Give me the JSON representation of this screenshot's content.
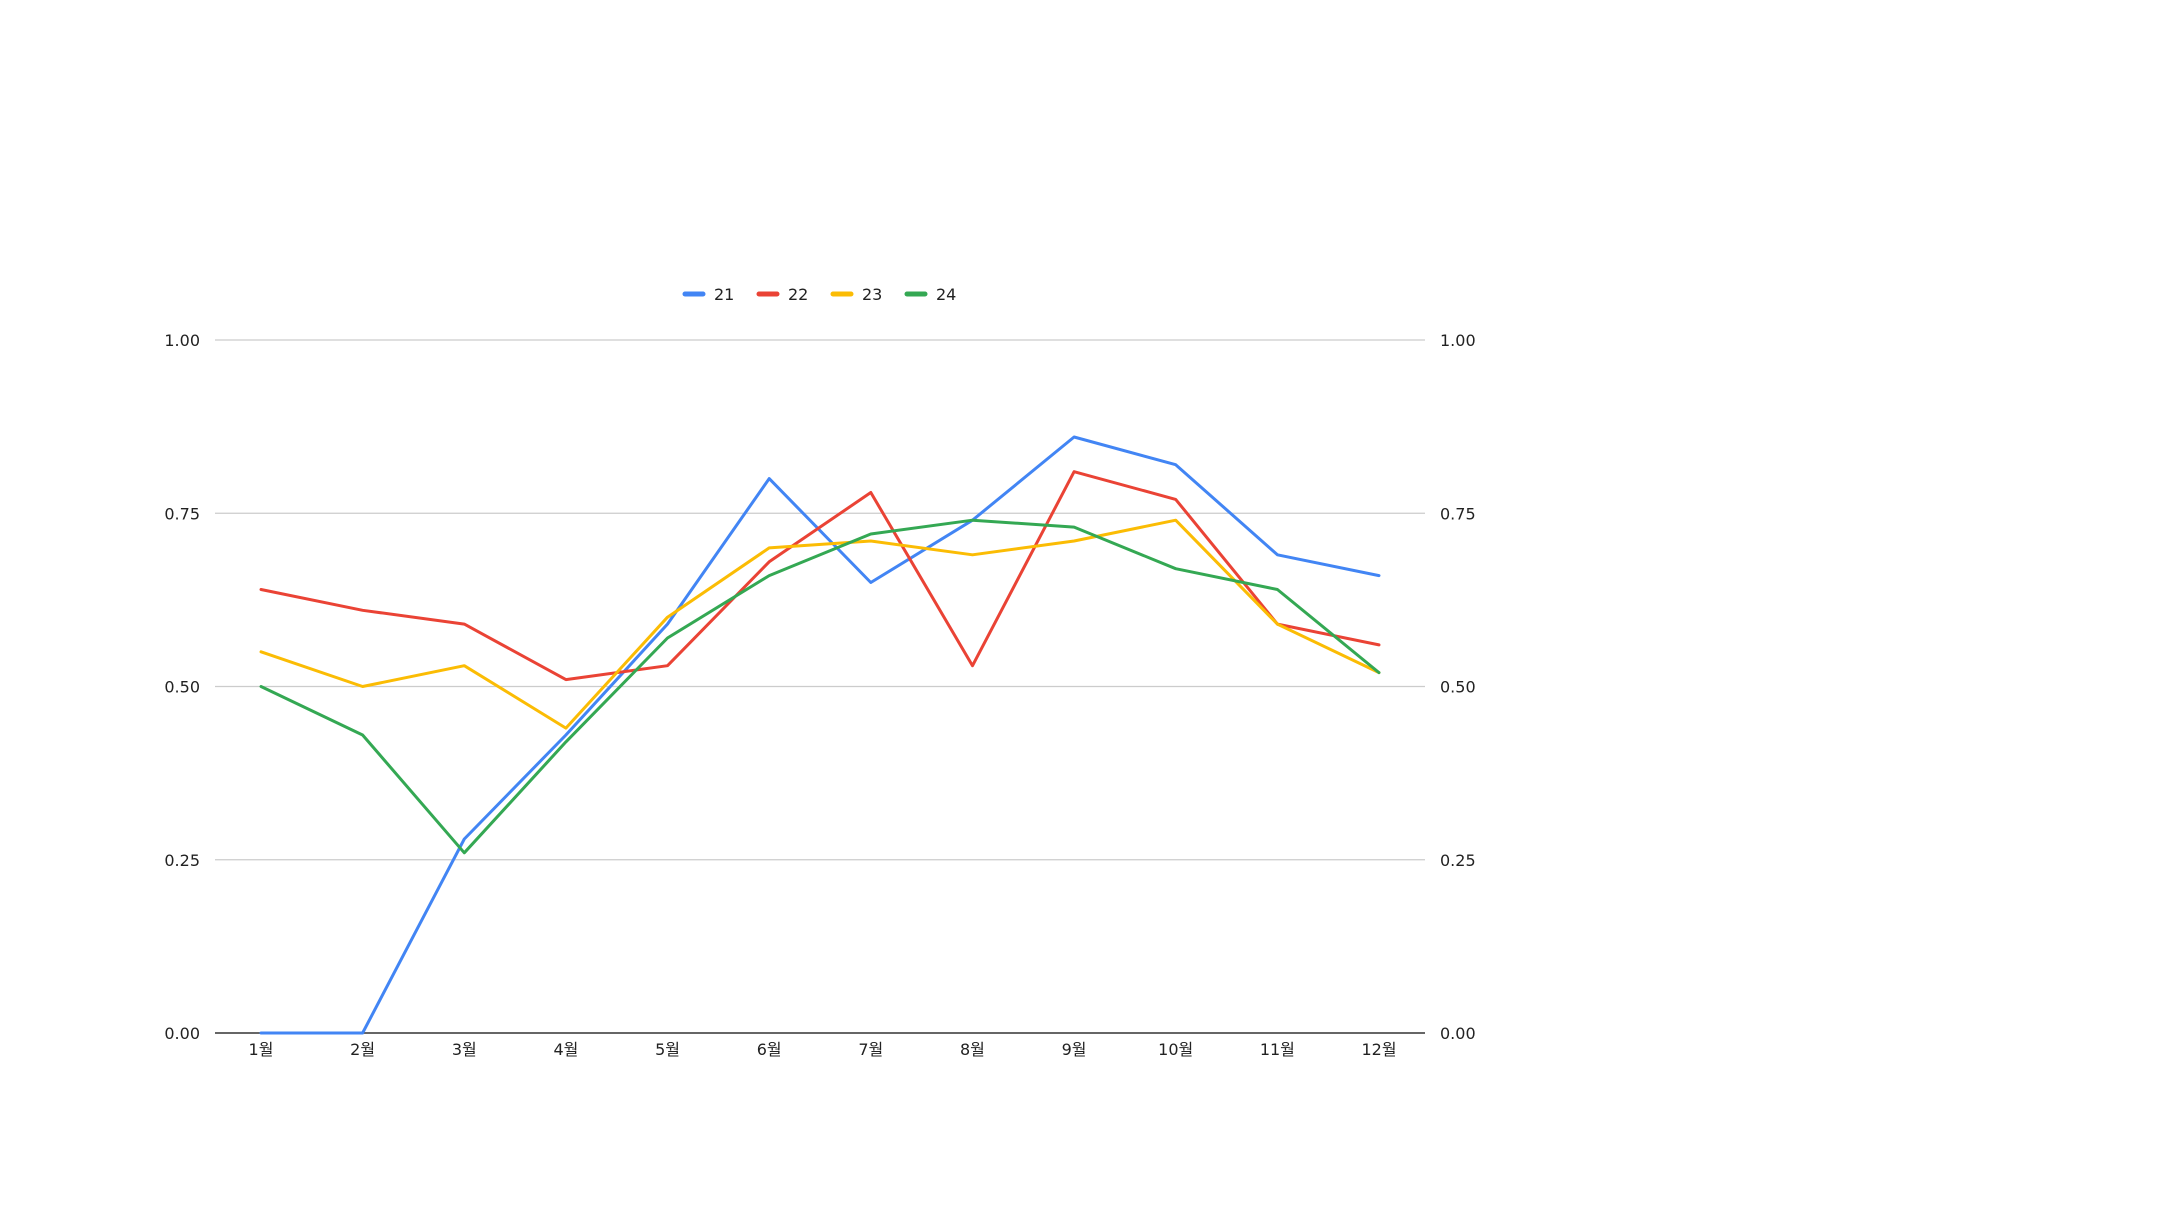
{
  "chart_data": {
    "type": "line",
    "categories": [
      "1월",
      "2월",
      "3월",
      "4월",
      "5월",
      "6월",
      "7월",
      "8월",
      "9월",
      "10월",
      "11월",
      "12월"
    ],
    "series": [
      {
        "name": "21",
        "color": "#4285f4",
        "values": [
          0.0,
          0.0,
          0.28,
          0.43,
          0.59,
          0.8,
          0.65,
          0.74,
          0.86,
          0.82,
          0.69,
          0.66
        ]
      },
      {
        "name": "22",
        "color": "#ea4335",
        "values": [
          0.64,
          0.61,
          0.59,
          0.51,
          0.53,
          0.68,
          0.78,
          0.53,
          0.81,
          0.77,
          0.59,
          0.56
        ]
      },
      {
        "name": "23",
        "color": "#fbbc04",
        "values": [
          0.55,
          0.5,
          0.53,
          0.44,
          0.6,
          0.7,
          0.71,
          0.69,
          0.71,
          0.74,
          0.59,
          0.52
        ]
      },
      {
        "name": "24",
        "color": "#34a853",
        "values": [
          0.5,
          0.43,
          0.26,
          0.42,
          0.57,
          0.66,
          0.72,
          0.74,
          0.73,
          0.67,
          0.64,
          0.52
        ]
      }
    ],
    "ylim": [
      0,
      1
    ],
    "yticks": [
      "0.00",
      "0.25",
      "0.50",
      "0.75",
      "1.00"
    ],
    "yticks_right": [
      "0.00",
      "0.25",
      "0.50",
      "0.75",
      "1.00"
    ],
    "grid": true,
    "legend_position": "top-center"
  }
}
